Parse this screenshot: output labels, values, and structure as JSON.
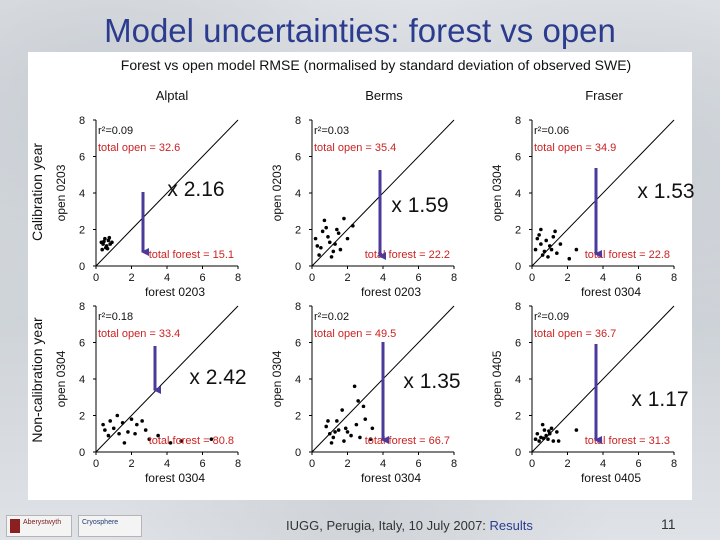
{
  "title": "Model uncertainties: forest vs open",
  "chart_data": {
    "type": "scatter",
    "title": "Forest vs open model RMSE (normalised by standard deviation of observed SWE)",
    "row_labels": [
      "Calibration year",
      "Non-calibration year"
    ],
    "column_labels": [
      "Alptal",
      "Berms",
      "Fraser"
    ],
    "xlim": [
      0,
      8
    ],
    "ylim": [
      0,
      8
    ],
    "ticks": [
      "0",
      "2",
      "4",
      "6",
      "8"
    ],
    "panels": [
      {
        "site": "Alptal",
        "xlabel": "forest 0203",
        "ylabel": "open 0203",
        "r2": "r²=0.09",
        "total_open": "total open = 32.6",
        "total_forest": "total forest = 15.1",
        "ratio": "x 2.16",
        "points": [
          [
            0.3,
            1.3
          ],
          [
            0.4,
            1.2
          ],
          [
            0.5,
            1.5
          ],
          [
            0.6,
            1.1
          ],
          [
            0.7,
            1.4
          ],
          [
            0.35,
            0.9
          ],
          [
            0.55,
            1.0
          ],
          [
            0.8,
            1.2
          ],
          [
            0.9,
            1.3
          ],
          [
            0.45,
            1.35
          ],
          [
            0.65,
            0.95
          ],
          [
            0.75,
            1.55
          ]
        ]
      },
      {
        "site": "Berms",
        "xlabel": "forest 0203",
        "ylabel": "open 0203",
        "r2": "r²=0.03",
        "total_open": "total open = 35.4",
        "total_forest": "total forest = 22.2",
        "ratio": "x 1.59",
        "points": [
          [
            0.2,
            1.5
          ],
          [
            0.5,
            1.0
          ],
          [
            0.8,
            2.1
          ],
          [
            1.0,
            1.3
          ],
          [
            1.2,
            0.8
          ],
          [
            1.5,
            1.8
          ],
          [
            0.4,
            0.6
          ],
          [
            0.7,
            2.5
          ],
          [
            1.8,
            2.6
          ],
          [
            0.9,
            1.6
          ],
          [
            1.1,
            0.5
          ],
          [
            0.3,
            1.1
          ],
          [
            1.3,
            1.2
          ],
          [
            1.6,
            0.9
          ],
          [
            2.0,
            1.5
          ],
          [
            2.3,
            2.2
          ],
          [
            0.6,
            1.9
          ],
          [
            1.4,
            2.0
          ]
        ]
      },
      {
        "site": "Fraser",
        "xlabel": "forest 0304",
        "ylabel": "open 0304",
        "r2": "r²=0.06",
        "total_open": "total open = 34.9",
        "total_forest": "total forest = 22.8",
        "ratio": "x 1.53",
        "points": [
          [
            0.3,
            1.5
          ],
          [
            0.5,
            1.2
          ],
          [
            0.7,
            0.8
          ],
          [
            1.0,
            1.1
          ],
          [
            0.4,
            1.7
          ],
          [
            0.8,
            1.4
          ],
          [
            1.2,
            1.6
          ],
          [
            0.6,
            0.6
          ],
          [
            0.9,
            0.5
          ],
          [
            1.1,
            0.9
          ],
          [
            1.4,
            0.7
          ],
          [
            0.2,
            0.9
          ],
          [
            1.6,
            1.2
          ],
          [
            0.5,
            2.0
          ],
          [
            2.1,
            0.4
          ],
          [
            2.5,
            0.9
          ],
          [
            1.3,
            1.9
          ]
        ]
      },
      {
        "site": "Alptal",
        "xlabel": "forest 0304",
        "ylabel": "open 0304",
        "r2": "r²=0.18",
        "total_open": "total open = 33.4",
        "total_forest": "total forest = 80.8",
        "ratio": "x 2.42",
        "points": [
          [
            0.5,
            1.2
          ],
          [
            0.8,
            1.7
          ],
          [
            1.0,
            1.3
          ],
          [
            1.2,
            2.0
          ],
          [
            1.5,
            1.6
          ],
          [
            1.8,
            1.1
          ],
          [
            0.7,
            0.9
          ],
          [
            2.0,
            1.8
          ],
          [
            2.3,
            1.5
          ],
          [
            2.6,
            1.7
          ],
          [
            3.0,
            0.7
          ],
          [
            3.5,
            0.9
          ],
          [
            4.2,
            0.5
          ],
          [
            4.8,
            0.6
          ],
          [
            6.5,
            0.7
          ],
          [
            1.3,
            1.0
          ],
          [
            2.8,
            1.2
          ],
          [
            0.4,
            1.5
          ],
          [
            1.6,
            0.5
          ],
          [
            2.2,
            1.0
          ]
        ]
      },
      {
        "site": "Berms",
        "xlabel": "forest 0304",
        "ylabel": "open 0304",
        "r2": "r²=0.02",
        "total_open": "total open = 49.5",
        "total_forest": "total forest = 66.7",
        "ratio": "x 1.35",
        "points": [
          [
            0.8,
            1.4
          ],
          [
            1.0,
            1.0
          ],
          [
            1.2,
            0.8
          ],
          [
            1.5,
            1.2
          ],
          [
            1.8,
            0.6
          ],
          [
            2.0,
            1.1
          ],
          [
            2.2,
            0.9
          ],
          [
            1.4,
            1.7
          ],
          [
            1.7,
            2.3
          ],
          [
            2.4,
            3.6
          ],
          [
            2.6,
            2.8
          ],
          [
            3.0,
            1.8
          ],
          [
            3.3,
            0.7
          ],
          [
            1.1,
            0.5
          ],
          [
            0.9,
            1.7
          ],
          [
            2.9,
            2.5
          ],
          [
            2.5,
            1.5
          ],
          [
            1.9,
            1.3
          ],
          [
            2.7,
            0.8
          ],
          [
            3.4,
            1.3
          ],
          [
            1.3,
            1.1
          ]
        ]
      },
      {
        "site": "Fraser",
        "xlabel": "forest 0405",
        "ylabel": "open 0405",
        "r2": "r²=0.09",
        "total_open": "total open = 36.7",
        "total_forest": "total forest = 31.3",
        "ratio": "x 1.17",
        "points": [
          [
            0.3,
            1.0
          ],
          [
            0.5,
            0.8
          ],
          [
            0.7,
            1.2
          ],
          [
            0.9,
            0.7
          ],
          [
            1.0,
            1.0
          ],
          [
            1.2,
            0.6
          ],
          [
            0.6,
            1.5
          ],
          [
            0.4,
            0.6
          ],
          [
            1.1,
            1.3
          ],
          [
            1.4,
            1.1
          ],
          [
            0.8,
            0.9
          ],
          [
            0.2,
            0.7
          ],
          [
            1.5,
            0.6
          ],
          [
            0.65,
            0.75
          ],
          [
            0.95,
            1.15
          ],
          [
            2.5,
            1.2
          ]
        ]
      }
    ]
  },
  "footer": {
    "text": "IUGG, Perugia, Italy, 10 July 2007: ",
    "highlight": "Results",
    "page": "11"
  },
  "logos": {
    "left": "Aberystwyth",
    "right": "Cryosphere"
  },
  "colors": {
    "title": "#2b3c8f",
    "red_text": "#cc2222",
    "arrow": "#4b3a9c"
  }
}
